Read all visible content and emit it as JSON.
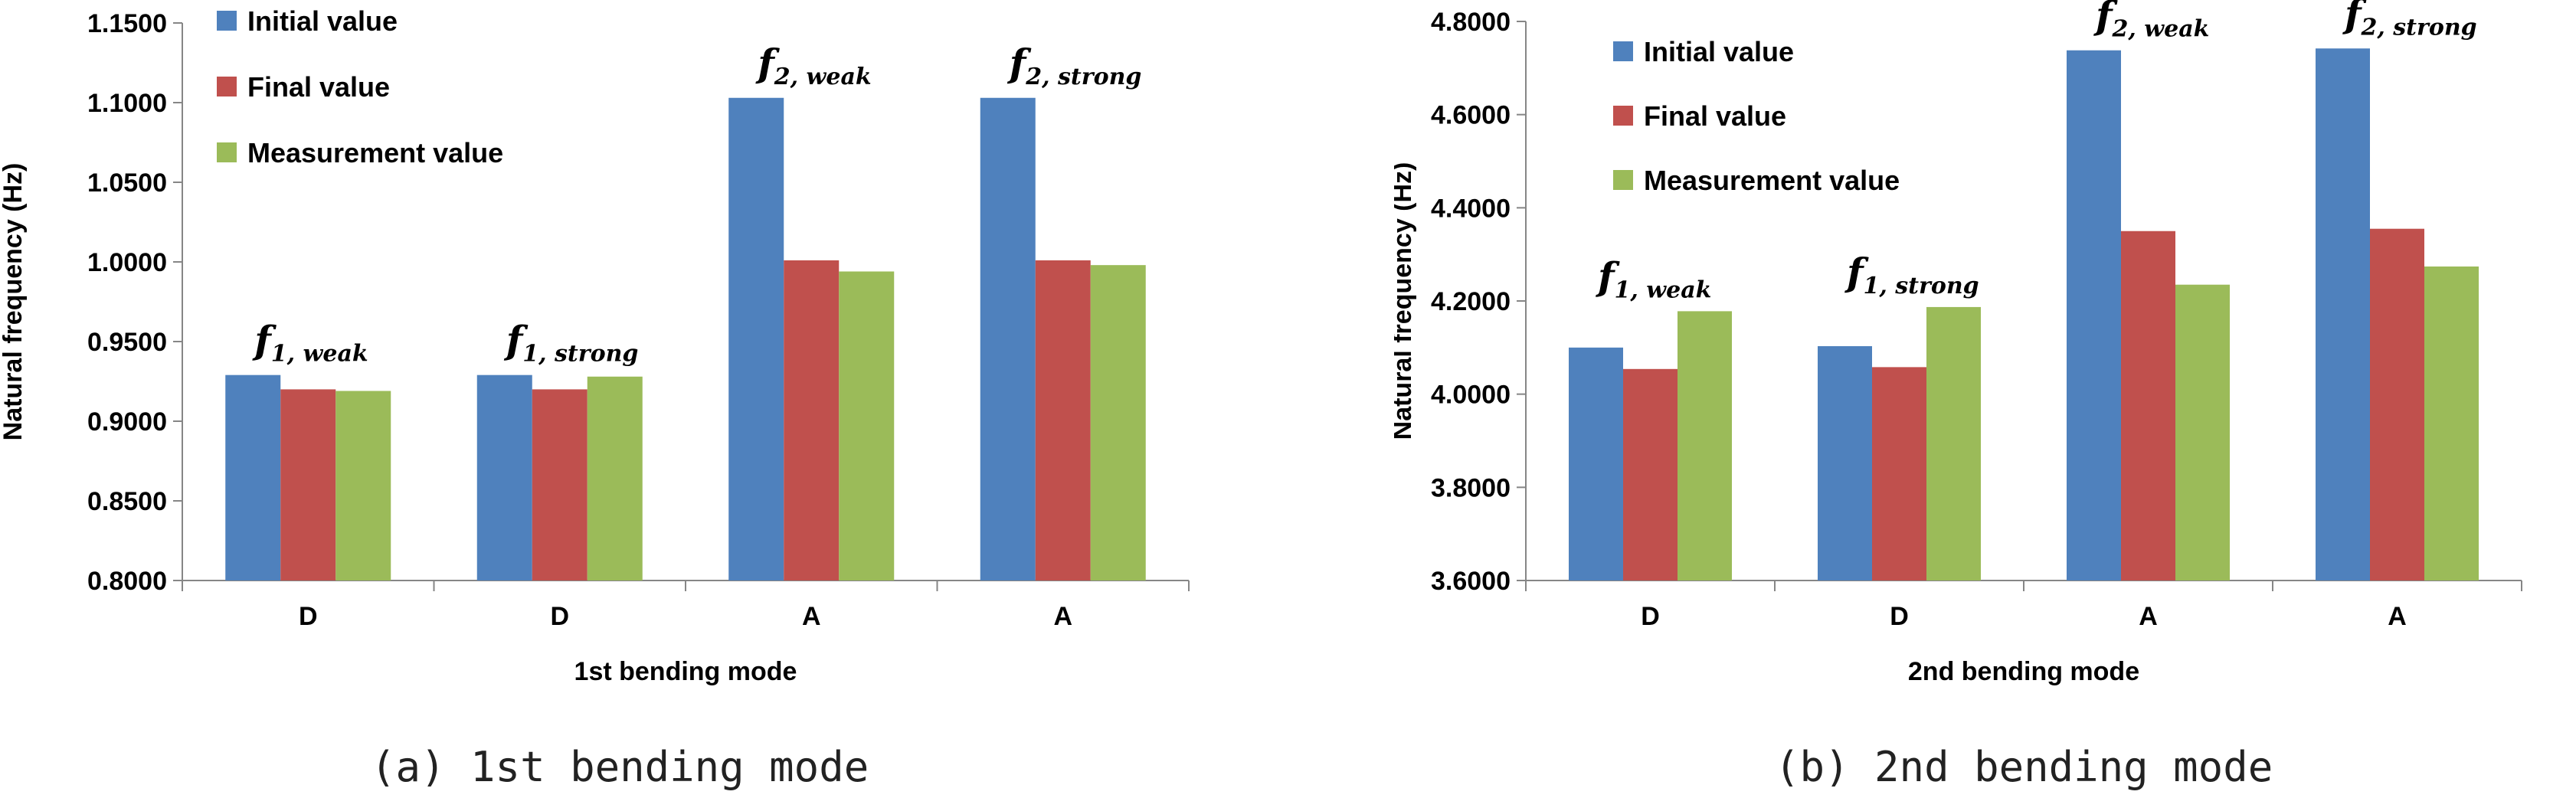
{
  "chart_data": [
    {
      "type": "bar",
      "xlabel": "1st bending mode",
      "ylabel": "Natural frequency (Hz)",
      "ylim": [
        0.8,
        1.15
      ],
      "yticks": [
        "0.8000",
        "0.8500",
        "0.9000",
        "0.9500",
        "1.0000",
        "1.0500",
        "1.1000",
        "1.1500"
      ],
      "categories": [
        "D",
        "D",
        "A",
        "A"
      ],
      "series": [
        {
          "name": "Initial value",
          "color": "#4F81BD",
          "values": [
            0.929,
            0.929,
            1.103,
            1.103
          ]
        },
        {
          "name": "Final value",
          "color": "#C0504D",
          "values": [
            0.92,
            0.92,
            1.001,
            1.001
          ]
        },
        {
          "name": "Measurement value",
          "color": "#9BBB59",
          "values": [
            0.919,
            0.928,
            0.994,
            0.998
          ]
        }
      ],
      "annotations": [
        {
          "main": "f",
          "sub": "1",
          "tag": ", weak"
        },
        {
          "main": "f",
          "sub": "1",
          "tag": ", strong"
        },
        {
          "main": "f",
          "sub": "2",
          "tag": ", weak"
        },
        {
          "main": "f",
          "sub": "2",
          "tag": ", strong"
        }
      ],
      "legend_position": "top-left",
      "caption": "(a) 1st bending mode"
    },
    {
      "type": "bar",
      "xlabel": "2nd bending mode",
      "ylabel": "Natural frequency (Hz)",
      "ylim": [
        3.6,
        4.8
      ],
      "yticks": [
        "3.6000",
        "3.8000",
        "4.0000",
        "4.2000",
        "4.4000",
        "4.6000",
        "4.8000"
      ],
      "categories": [
        "D",
        "D",
        "A",
        "A"
      ],
      "series": [
        {
          "name": "Initial value",
          "color": "#4F81BD",
          "values": [
            4.1,
            4.103,
            4.738,
            4.742
          ]
        },
        {
          "name": "Final value",
          "color": "#C0504D",
          "values": [
            4.054,
            4.058,
            4.35,
            4.355
          ]
        },
        {
          "name": "Measurement value",
          "color": "#9BBB59",
          "values": [
            4.178,
            4.187,
            4.235,
            4.274
          ]
        }
      ],
      "annotations": [
        {
          "main": "f",
          "sub": "1",
          "tag": ", weak"
        },
        {
          "main": "f",
          "sub": "1",
          "tag": ", strong"
        },
        {
          "main": "f",
          "sub": "2",
          "tag": ", weak"
        },
        {
          "main": "f",
          "sub": "2",
          "tag": ", strong"
        }
      ],
      "legend_position": "top-left",
      "caption": "(b) 2nd bending mode"
    }
  ]
}
